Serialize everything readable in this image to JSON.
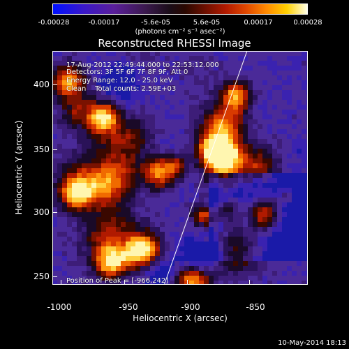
{
  "colorbar": {
    "ticks": [
      "-0.00028",
      "-0.00017",
      "-5.6e-05",
      "5.6e-05",
      "0.00017",
      "0.00028"
    ],
    "units": "(photons cm⁻² s⁻¹ asec⁻²)"
  },
  "title": "Reconstructed RHESSI Image",
  "info": {
    "line1": "17-Aug-2012 22:49:44.000 to 22:53:12.000",
    "line2": "Detectors: 3F 5F 6F 7F 8F 9F, Att 0",
    "line3": "Energy Range: 12.0 - 25.0 keV",
    "line4": "Clean    Total counts: 2.59E+03",
    "peak": "Position of Peak = [-966,242]"
  },
  "axes": {
    "xlabel": "Heliocentric X (arcsec)",
    "ylabel": "Heliocentric Y (arcsec)",
    "xticks": [
      "-1000",
      "-950",
      "-900",
      "-850"
    ],
    "yticks": [
      "400",
      "350",
      "300",
      "250"
    ],
    "xrange": [
      -1000,
      -815
    ],
    "yrange": [
      233,
      423
    ]
  },
  "limb_line": {
    "from": [
      -919,
      233
    ],
    "to": [
      -859,
      423
    ]
  },
  "timestamp": "10-May-2014 18:13",
  "colors": {
    "background": "#000000",
    "foreground": "#ffffff"
  }
}
